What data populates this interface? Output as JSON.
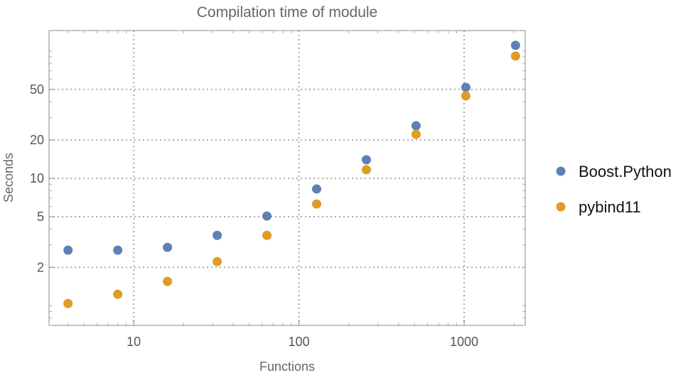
{
  "chart_data": {
    "type": "scatter",
    "title": "Compilation time of module",
    "xlabel": "Functions",
    "ylabel": "Seconds",
    "xscale": "log",
    "yscale": "log",
    "xlim": [
      3.07,
      2345
    ],
    "ylim": [
      0.7,
      145
    ],
    "grid": true,
    "legend_position": "right",
    "x_ticks": [
      {
        "value": 10,
        "label": "10"
      },
      {
        "value": 100,
        "label": "100"
      },
      {
        "value": 1000,
        "label": "1000"
      }
    ],
    "y_ticks": [
      {
        "value": 2,
        "label": "2"
      },
      {
        "value": 5,
        "label": "5"
      },
      {
        "value": 10,
        "label": "10"
      },
      {
        "value": 20,
        "label": "20"
      },
      {
        "value": 50,
        "label": "50"
      }
    ],
    "x": [
      4,
      8,
      16,
      32,
      64,
      128,
      256,
      512,
      1024,
      2048
    ],
    "series": [
      {
        "name": "Boost.Python",
        "color": "#5E81B5",
        "values": [
          2.73,
          2.73,
          2.87,
          3.57,
          5.06,
          8.25,
          14.0,
          25.9,
          51.9,
          111
        ]
      },
      {
        "name": "pybind11",
        "color": "#E19C24",
        "values": [
          1.04,
          1.23,
          1.55,
          2.22,
          3.57,
          6.29,
          11.7,
          22.2,
          44.5,
          91.4
        ]
      }
    ]
  }
}
